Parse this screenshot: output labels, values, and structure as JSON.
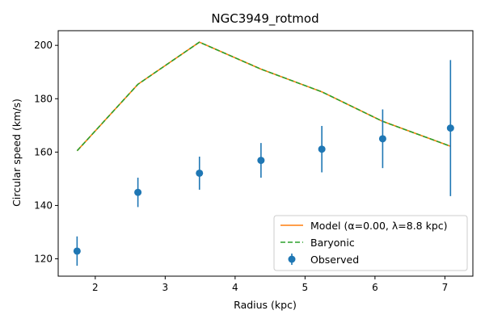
{
  "chart_data": {
    "type": "line",
    "title": "NGC3949_rotmod",
    "xlabel": "Radius (kpc)",
    "ylabel": "Circular speed (km/s)",
    "xlim": [
      1.47,
      7.4
    ],
    "ylim": [
      113.5,
      205.5
    ],
    "xticks": [
      2,
      3,
      4,
      5,
      6,
      7
    ],
    "yticks": [
      120,
      140,
      160,
      180,
      200
    ],
    "grid": false,
    "legend_position": "lower-right",
    "series": [
      {
        "name": "Model (α=0.00, λ=8.8 kpc)",
        "kind": "line",
        "style": "solid",
        "color": "#ff7f0e",
        "x": [
          1.74,
          2.61,
          3.49,
          4.37,
          5.24,
          6.11,
          7.08
        ],
        "y": [
          160.5,
          185.4,
          201.2,
          191.1,
          182.6,
          171.5,
          162.2
        ]
      },
      {
        "name": "Baryonic",
        "kind": "line",
        "style": "dashed",
        "color": "#2ca02c",
        "x": [
          1.74,
          2.61,
          3.49,
          4.37,
          5.24,
          6.11,
          7.08
        ],
        "y": [
          160.5,
          185.4,
          201.2,
          191.1,
          182.6,
          171.5,
          162.2
        ]
      },
      {
        "name": "Observed",
        "kind": "errorbar",
        "color": "#1f77b4",
        "x": [
          1.74,
          2.61,
          3.49,
          4.37,
          5.24,
          6.11,
          7.08
        ],
        "y": [
          122.9,
          144.9,
          152.1,
          156.9,
          161.1,
          165.0,
          169.0
        ],
        "err": [
          5.5,
          5.5,
          6.2,
          6.5,
          8.7,
          11.0,
          25.5
        ]
      }
    ]
  }
}
